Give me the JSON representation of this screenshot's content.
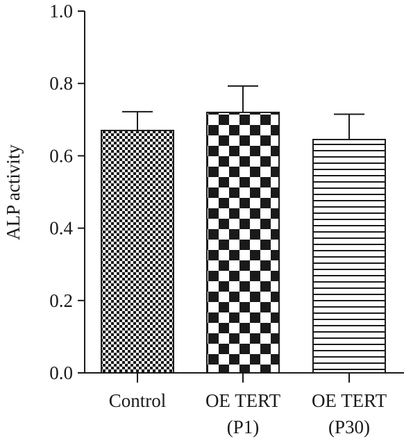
{
  "chart_data": {
    "type": "bar",
    "title": "",
    "xlabel": "",
    "ylabel": "ALP activity",
    "ylim": [
      0,
      1.0
    ],
    "yticks": [
      "0.0",
      "0.2",
      "0.4",
      "0.6",
      "0.8",
      "1.0"
    ],
    "categories": [
      {
        "line1": "Control",
        "line2": ""
      },
      {
        "line1": "OE TERT",
        "line2": "(P1)"
      },
      {
        "line1": "OE TERT",
        "line2": "(P30)"
      }
    ],
    "values": [
      0.67,
      0.72,
      0.645
    ],
    "error_upper": [
      0.052,
      0.073,
      0.07
    ],
    "fill_patterns": [
      "fine-checker",
      "coarse-checker",
      "horizontal-lines"
    ],
    "colors": {
      "ink": "#1a1a1a",
      "background": "#ffffff"
    },
    "grid": false,
    "legend": "none"
  }
}
